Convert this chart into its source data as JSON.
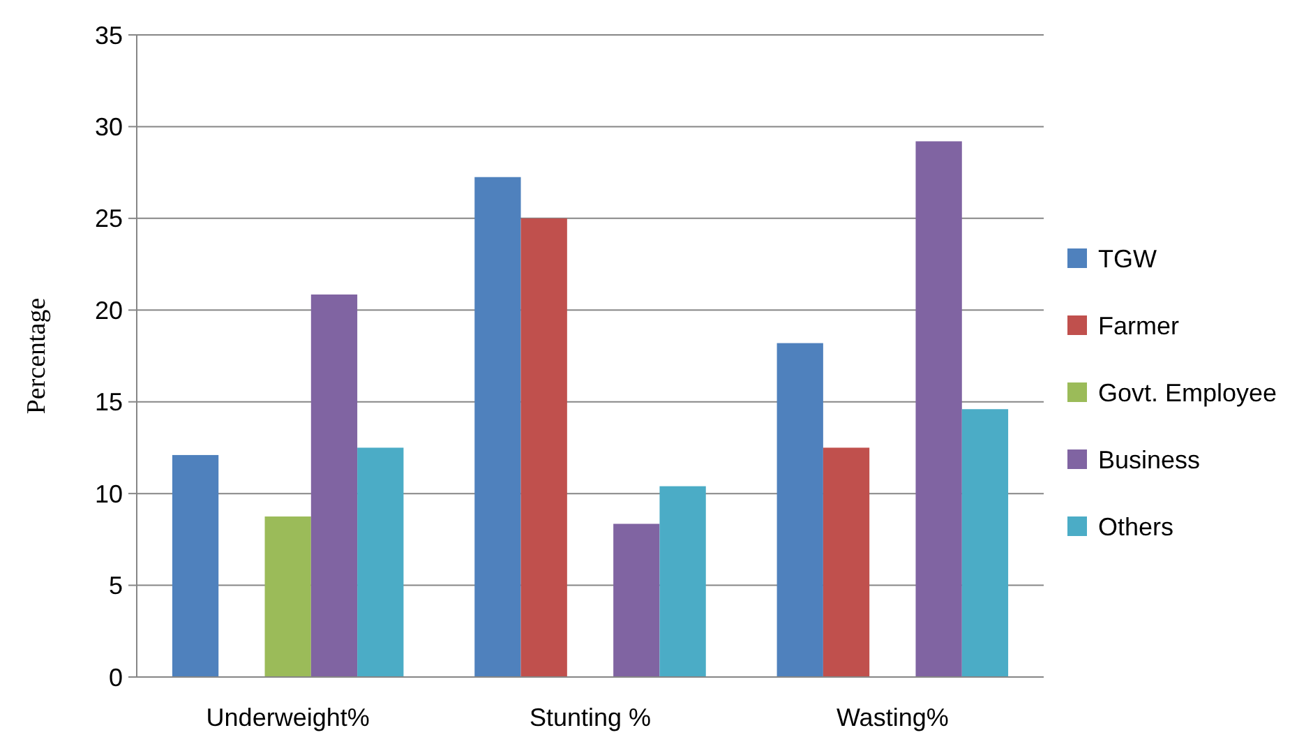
{
  "chart_data": {
    "type": "bar",
    "ylabel": "Percentage",
    "categories": [
      "Underweight%",
      "Stunting %",
      "Wasting%"
    ],
    "series": [
      {
        "name": "TGW",
        "color": "#4f81bd",
        "values": [
          12.1,
          27.25,
          18.2
        ]
      },
      {
        "name": "Farmer",
        "color": "#c0504d",
        "values": [
          0,
          25.0,
          12.5
        ]
      },
      {
        "name": "Govt. Employee",
        "color": "#9bbb59",
        "values": [
          8.75,
          0,
          0
        ]
      },
      {
        "name": "Business",
        "color": "#8064a2",
        "values": [
          20.85,
          8.35,
          29.2
        ]
      },
      {
        "name": "Others",
        "color": "#4bacc6",
        "values": [
          12.5,
          10.4,
          14.6
        ]
      }
    ],
    "ylim": [
      0,
      35
    ],
    "yticks": [
      0,
      5,
      10,
      15,
      20,
      25,
      30,
      35
    ],
    "grid": "y",
    "legend": "right"
  }
}
